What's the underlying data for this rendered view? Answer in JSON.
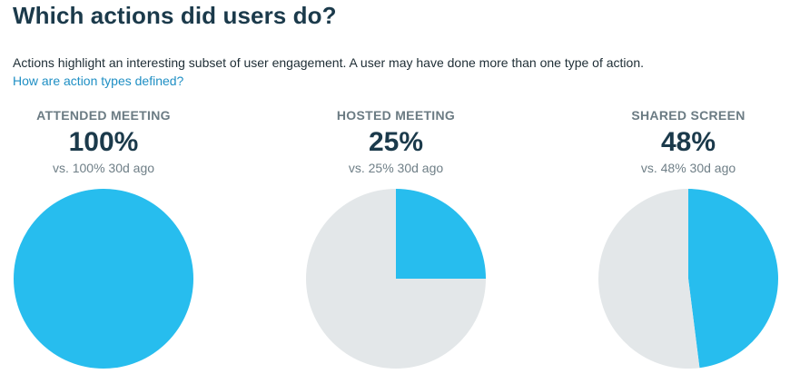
{
  "header": {
    "title": "Which actions did users do?",
    "description": "Actions highlight an interesting subset of user engagement. A user may have done more than one type of action.",
    "help_link": "How are action types defined?"
  },
  "colors": {
    "filled": "#27bdee",
    "remainder": "#e3e7e9"
  },
  "chart_data": [
    {
      "type": "pie",
      "title": "ATTENDED MEETING",
      "value_label": "100%",
      "comparison": "vs. 100% 30d ago",
      "values": [
        100,
        0
      ]
    },
    {
      "type": "pie",
      "title": "HOSTED MEETING",
      "value_label": "25%",
      "comparison": "vs. 25% 30d ago",
      "values": [
        25,
        75
      ]
    },
    {
      "type": "pie",
      "title": "SHARED SCREEN",
      "value_label": "48%",
      "comparison": "vs. 48% 30d ago",
      "values": [
        48,
        52
      ]
    }
  ]
}
